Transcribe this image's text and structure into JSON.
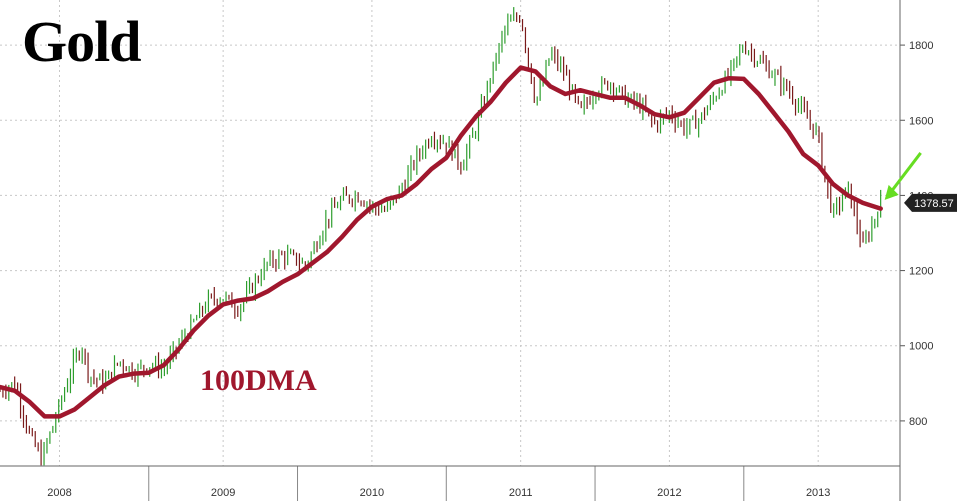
{
  "title": "Gold",
  "ma_label": "100DMA",
  "last_price_label": "1378.57",
  "colors": {
    "price": "#2e9e2e",
    "price_down": "#7a1a1a",
    "ma": "#a0172d",
    "grid": "#c8c8c8",
    "axis_text": "#333333",
    "badge_bg": "#222222",
    "badge_text": "#ffffff",
    "arrow": "#66dd22"
  },
  "chart_data": {
    "type": "line",
    "title": "Gold",
    "xlabel": "",
    "ylabel": "",
    "ylim": [
      680,
      1920
    ],
    "xlim": [
      2007.5,
      2013.55
    ],
    "yticks": [
      800,
      1000,
      1200,
      1400,
      1600,
      1800
    ],
    "xticks": [
      {
        "label": "2008",
        "value": 2007.9
      },
      {
        "label": "2009",
        "value": 2009.0
      },
      {
        "label": "2010",
        "value": 2010.0
      },
      {
        "label": "2011",
        "value": 2011.0
      },
      {
        "label": "2012",
        "value": 2012.0
      },
      {
        "label": "2013",
        "value": 2013.0
      }
    ],
    "year_boundaries": [
      2008.5,
      2009.5,
      2010.5,
      2011.5,
      2012.5
    ],
    "grid": true,
    "legend": "none",
    "series": [
      {
        "name": "",
        "style": "ohlc",
        "x": [
          2007.5,
          2007.6,
          2007.7,
          2007.78,
          2007.85,
          2007.9,
          2007.95,
          2008.0,
          2008.05,
          2008.1,
          2008.2,
          2008.3,
          2008.4,
          2008.5,
          2008.6,
          2008.7,
          2008.8,
          2008.9,
          2009.0,
          2009.1,
          2009.2,
          2009.3,
          2009.4,
          2009.5,
          2009.55,
          2009.6,
          2009.7,
          2009.8,
          2009.9,
          2010.0,
          2010.1,
          2010.2,
          2010.3,
          2010.4,
          2010.5,
          2010.6,
          2010.7,
          2010.8,
          2010.9,
          2011.0,
          2011.05,
          2011.1,
          2011.15,
          2011.2,
          2011.3,
          2011.4,
          2011.5,
          2011.6,
          2011.7,
          2011.8,
          2011.9,
          2012.0,
          2012.1,
          2012.2,
          2012.3,
          2012.4,
          2012.5,
          2012.6,
          2012.7,
          2012.8,
          2012.85,
          2012.9,
          2013.0,
          2013.05,
          2013.1,
          2013.2,
          2013.3,
          2013.42
        ],
        "values": [
          880,
          900,
          760,
          700,
          780,
          840,
          900,
          960,
          1000,
          920,
          900,
          960,
          930,
          950,
          940,
          1000,
          1060,
          1120,
          1130,
          1100,
          1160,
          1220,
          1240,
          1230,
          1210,
          1250,
          1340,
          1390,
          1400,
          1370,
          1360,
          1420,
          1500,
          1560,
          1540,
          1480,
          1580,
          1720,
          1850,
          1880,
          1760,
          1650,
          1700,
          1780,
          1720,
          1620,
          1680,
          1700,
          1660,
          1640,
          1590,
          1620,
          1580,
          1600,
          1660,
          1720,
          1800,
          1760,
          1720,
          1680,
          1650,
          1620,
          1560,
          1430,
          1350,
          1420,
          1260,
          1380
        ]
      },
      {
        "name": "100DMA",
        "style": "line",
        "x": [
          2007.5,
          2007.6,
          2007.7,
          2007.8,
          2007.9,
          2008.0,
          2008.1,
          2008.2,
          2008.3,
          2008.4,
          2008.5,
          2008.6,
          2008.7,
          2008.8,
          2008.9,
          2009.0,
          2009.1,
          2009.2,
          2009.3,
          2009.4,
          2009.5,
          2009.6,
          2009.7,
          2009.8,
          2009.9,
          2010.0,
          2010.1,
          2010.2,
          2010.3,
          2010.4,
          2010.5,
          2010.6,
          2010.7,
          2010.8,
          2010.9,
          2011.0,
          2011.1,
          2011.2,
          2011.3,
          2011.4,
          2011.5,
          2011.6,
          2011.7,
          2011.8,
          2011.9,
          2012.0,
          2012.1,
          2012.2,
          2012.3,
          2012.4,
          2012.5,
          2012.6,
          2012.7,
          2012.8,
          2012.9,
          2013.0,
          2013.1,
          2013.2,
          2013.3,
          2013.42
        ],
        "values": [
          890,
          880,
          850,
          812,
          812,
          830,
          862,
          894,
          918,
          926,
          928,
          948,
          990,
          1040,
          1080,
          1110,
          1120,
          1126,
          1145,
          1170,
          1190,
          1220,
          1250,
          1290,
          1335,
          1370,
          1390,
          1400,
          1430,
          1470,
          1500,
          1560,
          1610,
          1650,
          1700,
          1740,
          1730,
          1690,
          1670,
          1680,
          1670,
          1660,
          1660,
          1640,
          1616,
          1608,
          1620,
          1660,
          1700,
          1712,
          1710,
          1670,
          1620,
          1570,
          1510,
          1480,
          1430,
          1400,
          1380,
          1365
        ]
      }
    ]
  },
  "y_axis": {
    "tick_labels": [
      "800",
      "1000",
      "1200",
      "1400",
      "1600",
      "1800"
    ]
  },
  "x_axis": {
    "tick_labels": [
      "2008",
      "2009",
      "2010",
      "2011",
      "2012",
      "2013"
    ]
  }
}
